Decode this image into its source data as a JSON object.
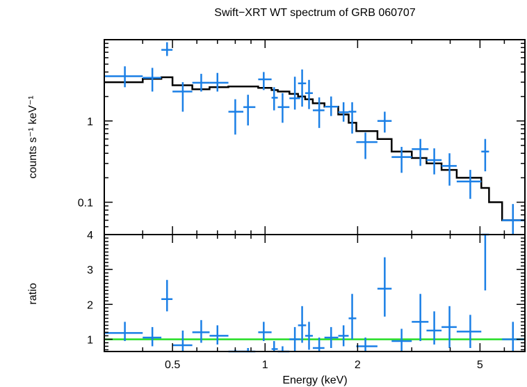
{
  "chart_data": {
    "title": "Swift−XRT WT spectrum of GRB 060707",
    "xlabel": "Energy (keV)",
    "xscale": "log",
    "xlim": [
      0.3,
      7.0
    ],
    "x_tick_labels": [
      {
        "value": 0.5,
        "label": "0.5"
      },
      {
        "value": 1,
        "label": "1"
      },
      {
        "value": 2,
        "label": "2"
      },
      {
        "value": 5,
        "label": "5"
      }
    ],
    "panels": [
      {
        "id": "spectrum",
        "type": "scatter",
        "ylabel": "counts s⁻¹ keV⁻¹",
        "yscale": "log",
        "ylim": [
          0.04,
          10
        ],
        "y_tick_labels": [
          {
            "value": 1,
            "label": "1"
          },
          {
            "value": 0.1,
            "label": "0.1"
          }
        ],
        "data": [
          {
            "x": 0.35,
            "xlo": 0.3,
            "xhi": 0.4,
            "y": 3.55,
            "ylo": 2.6,
            "yhi": 4.7
          },
          {
            "x": 0.43,
            "xlo": 0.4,
            "xhi": 0.46,
            "y": 3.4,
            "ylo": 2.3,
            "yhi": 4.5
          },
          {
            "x": 0.48,
            "xlo": 0.46,
            "xhi": 0.5,
            "y": 7.5,
            "ylo": 6.3,
            "yhi": 9.3
          },
          {
            "x": 0.54,
            "xlo": 0.5,
            "xhi": 0.58,
            "y": 2.3,
            "ylo": 1.3,
            "yhi": 3.0
          },
          {
            "x": 0.62,
            "xlo": 0.58,
            "xhi": 0.66,
            "y": 2.95,
            "ylo": 2.3,
            "yhi": 3.8
          },
          {
            "x": 0.7,
            "xlo": 0.66,
            "xhi": 0.76,
            "y": 2.95,
            "ylo": 2.3,
            "yhi": 3.9
          },
          {
            "x": 0.8,
            "xlo": 0.76,
            "xhi": 0.85,
            "y": 1.3,
            "ylo": 0.68,
            "yhi": 1.85
          },
          {
            "x": 0.88,
            "xlo": 0.85,
            "xhi": 0.93,
            "y": 1.48,
            "ylo": 0.88,
            "yhi": 2.1
          },
          {
            "x": 0.99,
            "xlo": 0.95,
            "xhi": 1.05,
            "y": 3.25,
            "ylo": 2.4,
            "yhi": 4.0
          },
          {
            "x": 1.07,
            "xlo": 1.05,
            "xhi": 1.1,
            "y": 1.93,
            "ylo": 1.35,
            "yhi": 2.6
          },
          {
            "x": 1.14,
            "xlo": 1.1,
            "xhi": 1.2,
            "y": 1.48,
            "ylo": 0.95,
            "yhi": 2.2
          },
          {
            "x": 1.25,
            "xlo": 1.2,
            "xhi": 1.3,
            "y": 1.9,
            "ylo": 1.38,
            "yhi": 3.5
          },
          {
            "x": 1.32,
            "xlo": 1.28,
            "xhi": 1.36,
            "y": 2.9,
            "ylo": 1.5,
            "yhi": 4.3
          },
          {
            "x": 1.39,
            "xlo": 1.35,
            "xhi": 1.43,
            "y": 2.2,
            "ylo": 1.4,
            "yhi": 3.2
          },
          {
            "x": 1.5,
            "xlo": 1.43,
            "xhi": 1.56,
            "y": 1.35,
            "ylo": 0.82,
            "yhi": 1.95
          },
          {
            "x": 1.64,
            "xlo": 1.56,
            "xhi": 1.73,
            "y": 1.5,
            "ylo": 1.15,
            "yhi": 2.0
          },
          {
            "x": 1.8,
            "xlo": 1.73,
            "xhi": 1.87,
            "y": 1.28,
            "ylo": 0.98,
            "yhi": 1.7
          },
          {
            "x": 1.92,
            "xlo": 1.87,
            "xhi": 1.98,
            "y": 1.3,
            "ylo": 0.7,
            "yhi": 1.7
          },
          {
            "x": 2.12,
            "xlo": 1.98,
            "xhi": 2.32,
            "y": 0.55,
            "ylo": 0.34,
            "yhi": 0.72
          },
          {
            "x": 2.45,
            "xlo": 2.32,
            "xhi": 2.58,
            "y": 1.0,
            "ylo": 0.72,
            "yhi": 1.3
          },
          {
            "x": 2.78,
            "xlo": 2.58,
            "xhi": 3.0,
            "y": 0.36,
            "ylo": 0.23,
            "yhi": 0.48
          },
          {
            "x": 3.2,
            "xlo": 3.0,
            "xhi": 3.4,
            "y": 0.45,
            "ylo": 0.28,
            "yhi": 0.6
          },
          {
            "x": 3.55,
            "xlo": 3.35,
            "xhi": 3.75,
            "y": 0.33,
            "ylo": 0.22,
            "yhi": 0.46
          },
          {
            "x": 3.98,
            "xlo": 3.75,
            "xhi": 4.2,
            "y": 0.28,
            "ylo": 0.16,
            "yhi": 0.4
          },
          {
            "x": 4.65,
            "xlo": 4.2,
            "xhi": 5.05,
            "y": 0.18,
            "ylo": 0.11,
            "yhi": 0.25
          },
          {
            "x": 5.2,
            "xlo": 5.05,
            "xhi": 5.35,
            "y": 0.42,
            "ylo": 0.24,
            "yhi": 0.6
          },
          {
            "x": 6.4,
            "xlo": 5.9,
            "xhi": 7.0,
            "y": 0.06,
            "ylo": 0.035,
            "yhi": 0.095
          }
        ],
        "model": {
          "type": "step",
          "edges": [
            0.3,
            0.4,
            0.46,
            0.5,
            0.58,
            0.66,
            0.76,
            0.85,
            0.95,
            1.05,
            1.1,
            1.2,
            1.28,
            1.35,
            1.43,
            1.56,
            1.73,
            1.87,
            1.98,
            2.32,
            2.58,
            3.0,
            3.35,
            3.75,
            4.2,
            5.05,
            5.35,
            5.9,
            7.0
          ],
          "values": [
            3.0,
            3.3,
            3.45,
            2.75,
            2.45,
            2.6,
            2.65,
            2.65,
            2.55,
            2.4,
            2.3,
            2.15,
            2.0,
            1.85,
            1.65,
            1.5,
            1.2,
            0.95,
            0.75,
            0.6,
            0.42,
            0.35,
            0.3,
            0.25,
            0.2,
            0.15,
            0.1,
            0.06
          ]
        }
      },
      {
        "id": "ratio",
        "type": "scatter",
        "ylabel": "ratio",
        "yscale": "linear",
        "ylim": [
          0.65,
          4.0
        ],
        "y_tick_labels": [
          {
            "value": 1,
            "label": "1"
          },
          {
            "value": 2,
            "label": "2"
          },
          {
            "value": 3,
            "label": "3"
          },
          {
            "value": 4,
            "label": "4"
          }
        ],
        "reference_line": {
          "y": 1.0,
          "color": "#22dd22"
        },
        "data": [
          {
            "x": 0.35,
            "xlo": 0.3,
            "xhi": 0.4,
            "y": 1.18,
            "ylo": 0.95,
            "yhi": 1.5
          },
          {
            "x": 0.43,
            "xlo": 0.4,
            "xhi": 0.46,
            "y": 1.05,
            "ylo": 0.8,
            "yhi": 1.35
          },
          {
            "x": 0.48,
            "xlo": 0.46,
            "xhi": 0.5,
            "y": 2.15,
            "ylo": 1.8,
            "yhi": 2.7
          },
          {
            "x": 0.54,
            "xlo": 0.5,
            "xhi": 0.58,
            "y": 0.83,
            "ylo": 0.6,
            "yhi": 1.25
          },
          {
            "x": 0.62,
            "xlo": 0.58,
            "xhi": 0.66,
            "y": 1.2,
            "ylo": 0.9,
            "yhi": 1.55
          },
          {
            "x": 0.7,
            "xlo": 0.66,
            "xhi": 0.76,
            "y": 1.1,
            "ylo": 0.85,
            "yhi": 1.4
          },
          {
            "x": 0.8,
            "xlo": 0.76,
            "xhi": 0.85,
            "y": 0.5,
            "ylo": 0.3,
            "yhi": 0.7
          },
          {
            "x": 0.88,
            "xlo": 0.85,
            "xhi": 0.93,
            "y": 0.55,
            "ylo": 0.35,
            "yhi": 0.75
          },
          {
            "x": 0.99,
            "xlo": 0.95,
            "xhi": 1.05,
            "y": 1.2,
            "ylo": 0.95,
            "yhi": 1.5
          },
          {
            "x": 1.07,
            "xlo": 1.05,
            "xhi": 1.1,
            "y": 0.72,
            "ylo": 0.5,
            "yhi": 0.95
          },
          {
            "x": 1.14,
            "xlo": 1.1,
            "xhi": 1.2,
            "y": 0.6,
            "ylo": 0.4,
            "yhi": 0.8
          },
          {
            "x": 1.25,
            "xlo": 1.2,
            "xhi": 1.3,
            "y": 1.0,
            "ylo": 0.65,
            "yhi": 1.35
          },
          {
            "x": 1.32,
            "xlo": 1.28,
            "xhi": 1.36,
            "y": 1.4,
            "ylo": 0.9,
            "yhi": 1.95
          },
          {
            "x": 1.39,
            "xlo": 1.35,
            "xhi": 1.43,
            "y": 1.1,
            "ylo": 0.7,
            "yhi": 1.5
          },
          {
            "x": 1.5,
            "xlo": 1.43,
            "xhi": 1.56,
            "y": 0.75,
            "ylo": 0.5,
            "yhi": 1.05
          },
          {
            "x": 1.64,
            "xlo": 1.56,
            "xhi": 1.73,
            "y": 1.05,
            "ylo": 0.75,
            "yhi": 1.35
          },
          {
            "x": 1.8,
            "xlo": 1.73,
            "xhi": 1.87,
            "y": 1.1,
            "ylo": 0.8,
            "yhi": 1.4
          },
          {
            "x": 1.92,
            "xlo": 1.87,
            "xhi": 1.98,
            "y": 1.6,
            "ylo": 1.0,
            "yhi": 2.3
          },
          {
            "x": 2.12,
            "xlo": 1.98,
            "xhi": 2.32,
            "y": 0.8,
            "ylo": 0.5,
            "yhi": 1.05
          },
          {
            "x": 2.45,
            "xlo": 2.32,
            "xhi": 2.58,
            "y": 2.45,
            "ylo": 1.65,
            "yhi": 3.35
          },
          {
            "x": 2.78,
            "xlo": 2.58,
            "xhi": 3.0,
            "y": 0.95,
            "ylo": 0.65,
            "yhi": 1.3
          },
          {
            "x": 3.2,
            "xlo": 3.0,
            "xhi": 3.4,
            "y": 1.5,
            "ylo": 0.95,
            "yhi": 2.3
          },
          {
            "x": 3.55,
            "xlo": 3.35,
            "xhi": 3.75,
            "y": 1.25,
            "ylo": 0.85,
            "yhi": 1.8
          },
          {
            "x": 3.98,
            "xlo": 3.75,
            "xhi": 4.2,
            "y": 1.35,
            "ylo": 0.75,
            "yhi": 1.95
          },
          {
            "x": 4.65,
            "xlo": 4.2,
            "xhi": 5.05,
            "y": 1.22,
            "ylo": 0.75,
            "yhi": 1.7
          },
          {
            "x": 5.2,
            "xlo": 5.05,
            "xhi": 5.35,
            "y": 4.0,
            "ylo": 2.4,
            "yhi": 4.1
          },
          {
            "x": 6.4,
            "xlo": 5.9,
            "xhi": 7.0,
            "y": 1.0,
            "ylo": 0.5,
            "yhi": 1.5
          }
        ]
      }
    ],
    "colors": {
      "data": "#1a7fe6",
      "model": "#000000",
      "reference": "#22dd22"
    },
    "grid": false
  }
}
